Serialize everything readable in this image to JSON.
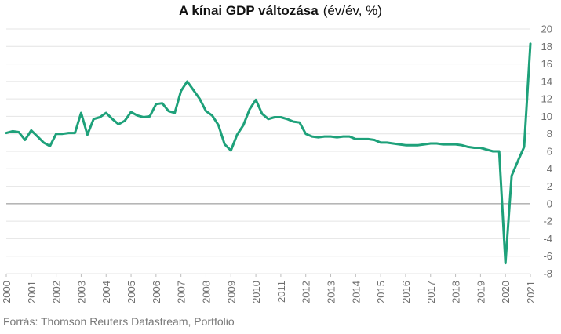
{
  "title": "A kínai GDP változása",
  "title_unit": "(év/év, %)",
  "source": "Forrás: Thomson Reuters Datastream, Portfolio",
  "colors": {
    "line": "#1ea17a",
    "grid": "#e4e4e4",
    "zero": "#8a8a8a",
    "tick": "#6e6e6e"
  },
  "chart_data": {
    "type": "line",
    "title": "A kínai GDP változása (év/év, %)",
    "xlabel": "",
    "ylabel": "",
    "ylim": [
      -8,
      20
    ],
    "yticks": [
      20,
      18,
      16,
      14,
      12,
      10,
      8,
      6,
      4,
      2,
      0,
      -2,
      -4,
      -6,
      -8
    ],
    "xtick_labels": [
      "2000",
      "2001",
      "2002",
      "2003",
      "2004",
      "2005",
      "2006",
      "2007",
      "2008",
      "2009",
      "2010",
      "2011",
      "2012",
      "2013",
      "2014",
      "2015",
      "2016",
      "2017",
      "2018",
      "2019",
      "2020",
      "2021"
    ],
    "grid": true,
    "legend": "none",
    "x": [
      "2000 Q1",
      "2000 Q2",
      "2000 Q3",
      "2000 Q4",
      "2001 Q1",
      "2001 Q2",
      "2001 Q3",
      "2001 Q4",
      "2002 Q1",
      "2002 Q2",
      "2002 Q3",
      "2002 Q4",
      "2003 Q1",
      "2003 Q2",
      "2003 Q3",
      "2003 Q4",
      "2004 Q1",
      "2004 Q2",
      "2004 Q3",
      "2004 Q4",
      "2005 Q1",
      "2005 Q2",
      "2005 Q3",
      "2005 Q4",
      "2006 Q1",
      "2006 Q2",
      "2006 Q3",
      "2006 Q4",
      "2007 Q1",
      "2007 Q2",
      "2007 Q3",
      "2007 Q4",
      "2008 Q1",
      "2008 Q2",
      "2008 Q3",
      "2008 Q4",
      "2009 Q1",
      "2009 Q2",
      "2009 Q3",
      "2009 Q4",
      "2010 Q1",
      "2010 Q2",
      "2010 Q3",
      "2010 Q4",
      "2011 Q1",
      "2011 Q2",
      "2011 Q3",
      "2011 Q4",
      "2012 Q1",
      "2012 Q2",
      "2012 Q3",
      "2012 Q4",
      "2013 Q1",
      "2013 Q2",
      "2013 Q3",
      "2013 Q4",
      "2014 Q1",
      "2014 Q2",
      "2014 Q3",
      "2014 Q4",
      "2015 Q1",
      "2015 Q2",
      "2015 Q3",
      "2015 Q4",
      "2016 Q1",
      "2016 Q2",
      "2016 Q3",
      "2016 Q4",
      "2017 Q1",
      "2017 Q2",
      "2017 Q3",
      "2017 Q4",
      "2018 Q1",
      "2018 Q2",
      "2018 Q3",
      "2018 Q4",
      "2019 Q1",
      "2019 Q2",
      "2019 Q3",
      "2019 Q4",
      "2020 Q1",
      "2020 Q2",
      "2020 Q3",
      "2020 Q4",
      "2021 Q1"
    ],
    "series": [
      {
        "values": [
          8.1,
          8.3,
          8.2,
          7.3,
          8.4,
          7.7,
          7.0,
          6.6,
          8.0,
          8.0,
          8.1,
          8.1,
          10.4,
          7.9,
          9.7,
          9.9,
          10.4,
          9.7,
          9.1,
          9.5,
          10.5,
          10.1,
          9.9,
          10.0,
          11.4,
          11.5,
          10.6,
          10.4,
          12.9,
          14.0,
          13.0,
          12.0,
          10.6,
          10.1,
          9.0,
          6.8,
          6.1,
          7.9,
          9.0,
          10.8,
          11.9,
          10.3,
          9.7,
          9.9,
          9.9,
          9.7,
          9.4,
          9.3,
          8.0,
          7.7,
          7.6,
          7.7,
          7.7,
          7.6,
          7.7,
          7.7,
          7.4,
          7.4,
          7.4,
          7.3,
          7.0,
          7.0,
          6.9,
          6.8,
          6.7,
          6.7,
          6.7,
          6.8,
          6.9,
          6.9,
          6.8,
          6.8,
          6.8,
          6.7,
          6.5,
          6.4,
          6.4,
          6.2,
          6.0,
          6.0,
          -6.8,
          3.2,
          4.9,
          6.5,
          18.3
        ]
      }
    ]
  }
}
